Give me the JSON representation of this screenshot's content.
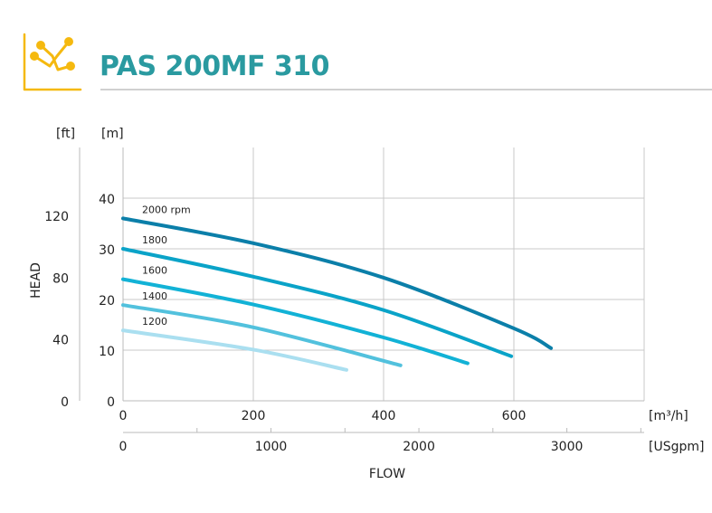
{
  "header": {
    "title": "PAS 200MF 310",
    "icon": "line-chart-icon",
    "accent_color": "#f5b90f",
    "title_color": "#2a9aa0"
  },
  "chart_data": {
    "type": "line",
    "title": "PAS 200MF 310",
    "xlabel": "FLOW",
    "ylabel": "HEAD",
    "x_unit_primary": "[m³/h]",
    "x_unit_secondary": "[USgpm]",
    "y_unit_primary": "[m]",
    "y_unit_secondary": "[ft]",
    "xlim": [
      0,
      800
    ],
    "ylim": [
      0,
      50
    ],
    "x_ticks": [
      0,
      200,
      400,
      600
    ],
    "y_ticks": [
      0,
      10,
      20,
      30,
      40
    ],
    "x_secondary_ticks": [
      0,
      1000,
      2000,
      3000
    ],
    "y_secondary_ticks": [
      0,
      40,
      80,
      120
    ],
    "grid": true,
    "series": [
      {
        "name": "2000 rpm",
        "color": "#0b7fa9",
        "x": [
          0,
          200,
          400,
          600,
          657
        ],
        "y": [
          36.0,
          31.1,
          24.3,
          14.3,
          10.4
        ]
      },
      {
        "name": "1800",
        "color": "#0aa3c8",
        "x": [
          0,
          200,
          400,
          596
        ],
        "y": [
          30.0,
          24.5,
          17.9,
          8.8
        ]
      },
      {
        "name": "1600",
        "color": "#12b2d6",
        "x": [
          0,
          200,
          400,
          529
        ],
        "y": [
          24.0,
          19.0,
          12.5,
          7.4
        ]
      },
      {
        "name": "1400",
        "color": "#52c1dd",
        "x": [
          0,
          200,
          426
        ],
        "y": [
          18.9,
          14.5,
          7.0
        ]
      },
      {
        "name": "1200",
        "color": "#aadff0",
        "x": [
          0,
          200,
          343
        ],
        "y": [
          13.9,
          10.1,
          6.1
        ]
      }
    ]
  }
}
